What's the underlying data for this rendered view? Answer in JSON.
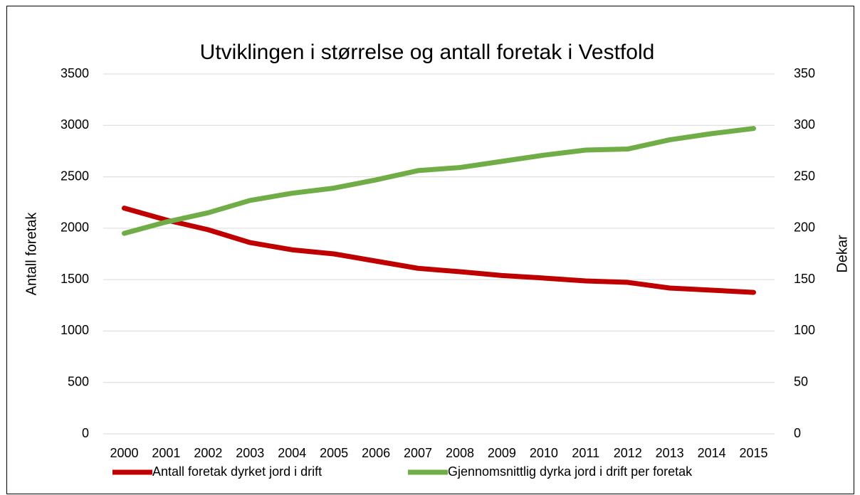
{
  "chart_data": {
    "type": "line",
    "title": "Utviklingen i størrelse og antall foretak i Vestfold",
    "ylabel": "Antall foretak",
    "y2label": "Dekar",
    "categories": [
      "2000",
      "2001",
      "2002",
      "2003",
      "2004",
      "2005",
      "2006",
      "2007",
      "2008",
      "2009",
      "2010",
      "2011",
      "2012",
      "2013",
      "2014",
      "2015"
    ],
    "series": [
      {
        "name": "Antall foretak dyrket jord i drift",
        "color": "#c00000",
        "axis": "y",
        "values": [
          2195,
          2080,
          1985,
          1860,
          1790,
          1750,
          1680,
          1610,
          1577,
          1540,
          1515,
          1487,
          1473,
          1418,
          1397,
          1376
        ]
      },
      {
        "name": "Gjennomsnittlig dyrka jord i drift per foretak",
        "color": "#70ad47",
        "axis": "y2",
        "values": [
          195,
          206,
          215,
          227,
          234,
          239,
          247,
          256,
          259,
          265,
          271,
          276,
          277,
          286,
          292,
          297
        ]
      }
    ],
    "ylim": [
      0,
      3500
    ],
    "yticks": [
      0,
      500,
      1000,
      1500,
      2000,
      2500,
      3000,
      3500
    ],
    "y2lim": [
      0,
      350
    ],
    "y2ticks": [
      0,
      50,
      100,
      150,
      200,
      250,
      300,
      350
    ],
    "grid": true,
    "legend": "bottom"
  }
}
